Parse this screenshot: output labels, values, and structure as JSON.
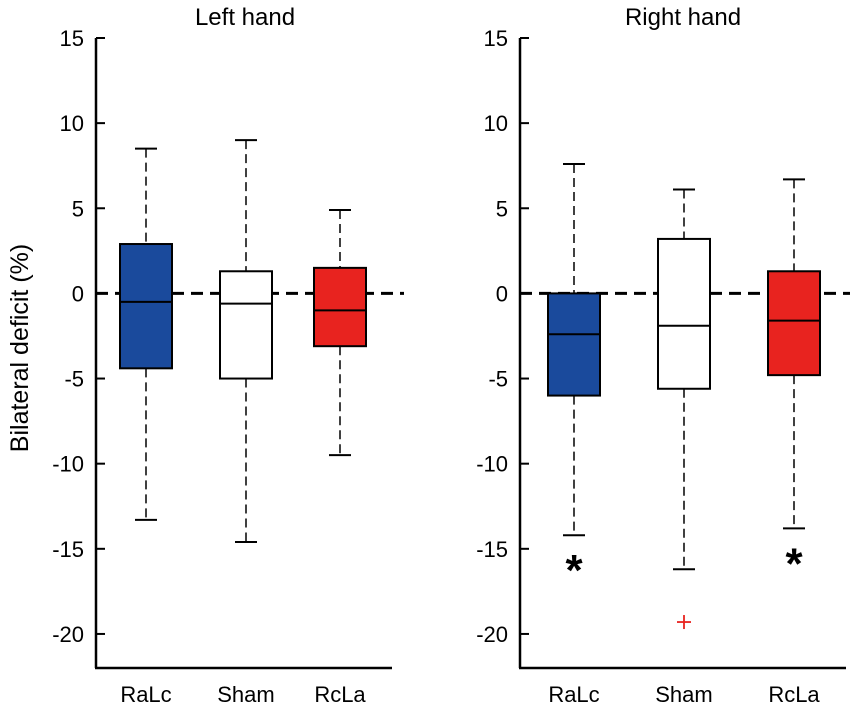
{
  "chart_data": {
    "type": "boxplot",
    "ylabel": "Bilateral deficit (%)",
    "ylim": [
      -22,
      15
    ],
    "yticks": [
      15,
      10,
      5,
      0,
      -5,
      -10,
      -15,
      -20
    ],
    "reference_line": 0,
    "panels": [
      {
        "title": "Left hand",
        "boxes": [
          {
            "label": "RaLc",
            "color": "#1a4a9c",
            "whisker_low": -13.3,
            "q1": -4.4,
            "median": -0.5,
            "q3": 2.9,
            "whisker_high": 8.5,
            "outliers": [],
            "significant": false
          },
          {
            "label": "Sham",
            "color": "#ffffff",
            "whisker_low": -14.6,
            "q1": -5.0,
            "median": -0.6,
            "q3": 1.3,
            "whisker_high": 9.0,
            "outliers": [],
            "significant": false
          },
          {
            "label": "RcLa",
            "color": "#e8231f",
            "whisker_low": -9.5,
            "q1": -3.1,
            "median": -1.0,
            "q3": 1.5,
            "whisker_high": 4.9,
            "outliers": [],
            "significant": false
          }
        ]
      },
      {
        "title": "Right hand",
        "boxes": [
          {
            "label": "RaLc",
            "color": "#1a4a9c",
            "whisker_low": -14.2,
            "q1": -6.0,
            "median": -2.4,
            "q3": 0.0,
            "whisker_high": 7.6,
            "outliers": [],
            "significant": true,
            "marker": "*"
          },
          {
            "label": "Sham",
            "color": "#ffffff",
            "whisker_low": -16.2,
            "q1": -5.6,
            "median": -1.9,
            "q3": 3.2,
            "whisker_high": 6.1,
            "outliers": [
              -19.3
            ],
            "significant": false
          },
          {
            "label": "RcLa",
            "color": "#e8231f",
            "whisker_low": -13.8,
            "q1": -4.8,
            "median": -1.6,
            "q3": 1.3,
            "whisker_high": 6.7,
            "outliers": [],
            "significant": true,
            "marker": "*"
          }
        ]
      }
    ]
  }
}
